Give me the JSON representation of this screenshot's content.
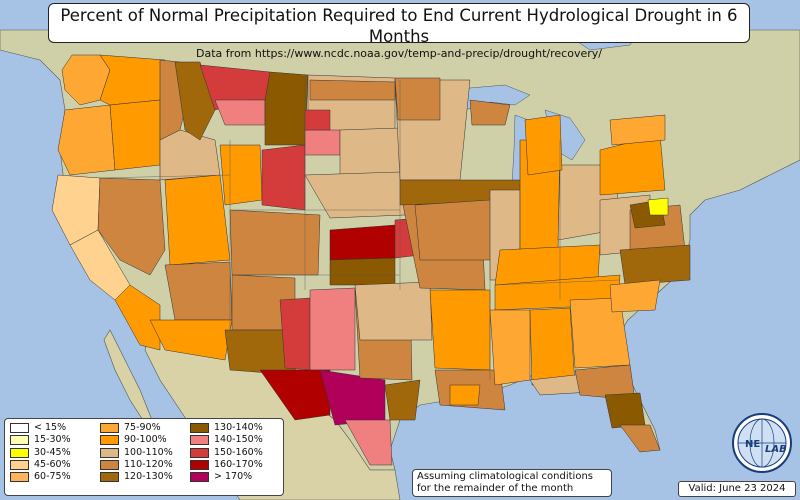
{
  "header": {
    "title": "Percent of Normal Precipitation Required to End Current Hydrological Drought in 6 Months",
    "subtitle": "Data from https://www.ncdc.noaa.gov/temp-and-precip/drought/recovery/"
  },
  "legend": {
    "columns": [
      [
        {
          "label": "< 15%",
          "color": "#ffffff"
        },
        {
          "label": "15-30%",
          "color": "#ffffb3"
        },
        {
          "label": "30-45%",
          "color": "#ffff00"
        },
        {
          "label": "45-60%",
          "color": "#ffd38f"
        },
        {
          "label": "60-75%",
          "color": "#ffb35c"
        }
      ],
      [
        {
          "label": "75-90%",
          "color": "#ffa733"
        },
        {
          "label": "90-100%",
          "color": "#ff9a00"
        },
        {
          "label": "100-110%",
          "color": "#deb887"
        },
        {
          "label": "110-120%",
          "color": "#cd853f"
        },
        {
          "label": "120-130%",
          "color": "#a0680a"
        }
      ],
      [
        {
          "label": "130-140%",
          "color": "#8b5a00"
        },
        {
          "label": "140-150%",
          "color": "#f08080"
        },
        {
          "label": "150-160%",
          "color": "#d43c3c"
        },
        {
          "label": "160-170%",
          "color": "#b00000"
        },
        {
          "label": "> 170%",
          "color": "#b0005a"
        }
      ]
    ]
  },
  "note": {
    "line1": "Assuming climatological conditions",
    "line2": "for the remainder of the month"
  },
  "valid_label": "Valid: June 23 2024",
  "logo": {
    "text_left": "NE",
    "text_right": "LAB",
    "icon": "nexlab-globe-logo"
  },
  "colors": {
    "ocean": "#a6c3e6",
    "land": "#d8d3b4",
    "forest": "#9cb58a"
  }
}
